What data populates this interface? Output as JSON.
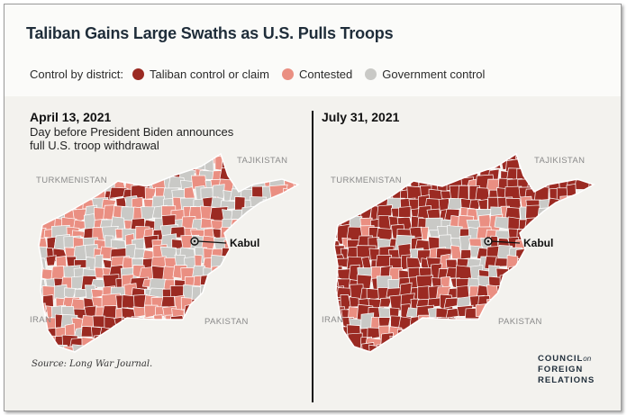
{
  "title": "Taliban Gains Large Swaths as U.S. Pulls Troops",
  "legend": {
    "label": "Control by district:",
    "items": [
      {
        "label": "Taliban control or claim",
        "color": "#9b2a22"
      },
      {
        "label": "Contested",
        "color": "#ea8f82"
      },
      {
        "label": "Government control",
        "color": "#c9c9c6"
      }
    ]
  },
  "panels": [
    {
      "date": "April 13, 2021",
      "subtitle": "Day before President Biden announces full U.S. troop withdrawal",
      "labels": {
        "turkmenistan": "TURKMENISTAN",
        "tajikistan": "TAJIKISTAN",
        "iran": "IRAN",
        "pakistan": "PAKISTAN",
        "kabul": "Kabul"
      }
    },
    {
      "date": "July 31, 2021",
      "subtitle": "",
      "labels": {
        "turkmenistan": "TURKMENISTAN",
        "tajikistan": "TAJIKISTAN",
        "iran": "IRAN",
        "pakistan": "PAKISTAN",
        "kabul": "Kabul"
      }
    }
  ],
  "source": "Source: Long War Journal.",
  "logo": {
    "line1": "COUNCIL",
    "on": "on",
    "line2": "FOREIGN",
    "line3": "RELATIONS"
  }
}
